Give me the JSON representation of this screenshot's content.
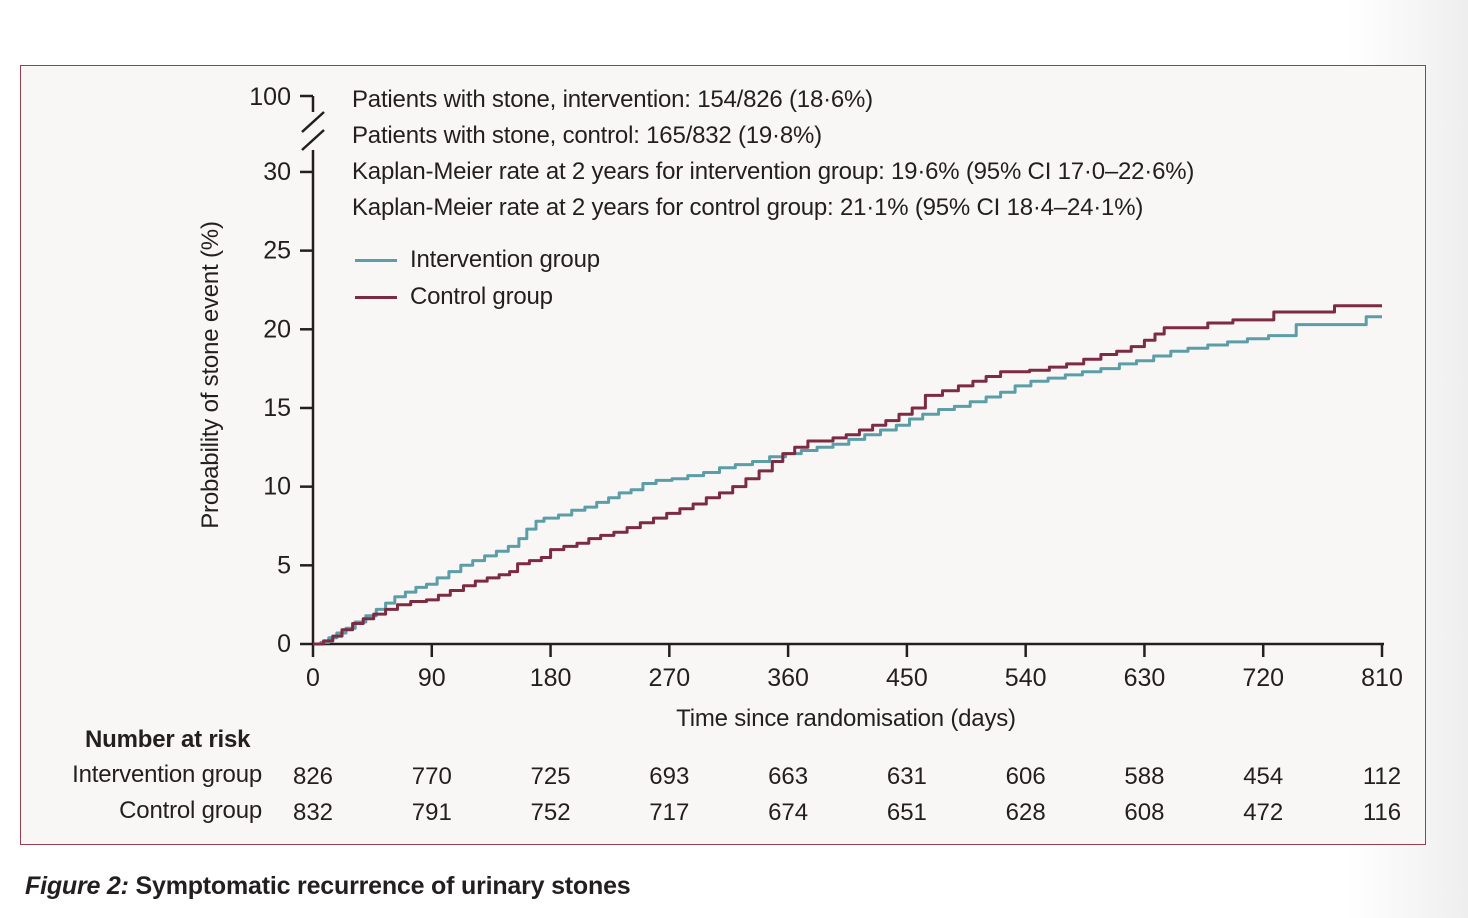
{
  "figure_box": {
    "border_color": "#96404f",
    "background": "#f8f7f5"
  },
  "annotations": {
    "lines": [
      "Patients with stone, intervention: 154/826 (18·6%)",
      "Patients with stone, control: 165/832 (19·8%)",
      "Kaplan-Meier rate at 2 years for intervention group: 19·6% (95% CI 17·0–22·6%)",
      "Kaplan-Meier rate at 2 years for control group: 21·1% (95% CI 18·4–24·1%)"
    ]
  },
  "caption": {
    "label": "Figure 2:",
    "text": "Symptomatic recurrence of urinary stones"
  },
  "chart_data": {
    "type": "line",
    "subtype": "kaplan-meier-step",
    "title": "",
    "xlabel": "Time since randomisation (days)",
    "ylabel": "Probability of stone event (%)",
    "xlim": [
      0,
      810
    ],
    "x_ticks": [
      0,
      90,
      180,
      270,
      360,
      450,
      540,
      630,
      720,
      810
    ],
    "y_ticks": [
      0,
      5,
      10,
      15,
      20,
      25,
      30
    ],
    "y_axis_break": true,
    "y_axis_top_label": "100",
    "grid": false,
    "legend_position": "upper-left-inside",
    "axis_color": "#231f20",
    "series": [
      {
        "name": "Intervention group",
        "color": "#5b9ea7",
        "points": [
          [
            0,
            0
          ],
          [
            6,
            0.1
          ],
          [
            12,
            0.4
          ],
          [
            18,
            0.7
          ],
          [
            25,
            1.0
          ],
          [
            32,
            1.4
          ],
          [
            40,
            1.8
          ],
          [
            48,
            2.2
          ],
          [
            55,
            2.6
          ],
          [
            62,
            3.0
          ],
          [
            70,
            3.3
          ],
          [
            78,
            3.6
          ],
          [
            86,
            3.8
          ],
          [
            94,
            4.2
          ],
          [
            103,
            4.6
          ],
          [
            112,
            5.0
          ],
          [
            121,
            5.3
          ],
          [
            130,
            5.6
          ],
          [
            139,
            5.9
          ],
          [
            148,
            6.2
          ],
          [
            156,
            6.7
          ],
          [
            162,
            7.3
          ],
          [
            169,
            7.8
          ],
          [
            175,
            8.0
          ],
          [
            186,
            8.2
          ],
          [
            196,
            8.5
          ],
          [
            206,
            8.7
          ],
          [
            215,
            9.0
          ],
          [
            224,
            9.3
          ],
          [
            232,
            9.6
          ],
          [
            241,
            9.8
          ],
          [
            250,
            10.2
          ],
          [
            260,
            10.4
          ],
          [
            272,
            10.5
          ],
          [
            284,
            10.7
          ],
          [
            296,
            10.9
          ],
          [
            308,
            11.2
          ],
          [
            320,
            11.4
          ],
          [
            333,
            11.6
          ],
          [
            346,
            11.9
          ],
          [
            358,
            12.1
          ],
          [
            370,
            12.3
          ],
          [
            382,
            12.5
          ],
          [
            394,
            12.7
          ],
          [
            406,
            13.0
          ],
          [
            418,
            13.3
          ],
          [
            430,
            13.6
          ],
          [
            442,
            13.9
          ],
          [
            452,
            14.3
          ],
          [
            462,
            14.6
          ],
          [
            474,
            14.9
          ],
          [
            486,
            15.1
          ],
          [
            498,
            15.4
          ],
          [
            510,
            15.7
          ],
          [
            521,
            16.0
          ],
          [
            532,
            16.4
          ],
          [
            544,
            16.7
          ],
          [
            557,
            16.9
          ],
          [
            570,
            17.1
          ],
          [
            583,
            17.3
          ],
          [
            597,
            17.5
          ],
          [
            611,
            17.8
          ],
          [
            624,
            18.0
          ],
          [
            637,
            18.3
          ],
          [
            650,
            18.6
          ],
          [
            663,
            18.8
          ],
          [
            678,
            19.0
          ],
          [
            693,
            19.2
          ],
          [
            708,
            19.4
          ],
          [
            724,
            19.6
          ],
          [
            745,
            20.3
          ],
          [
            798,
            20.8
          ],
          [
            810,
            20.8
          ]
        ]
      },
      {
        "name": "Control group",
        "color": "#7d2a43",
        "points": [
          [
            0,
            0
          ],
          [
            8,
            0.2
          ],
          [
            15,
            0.5
          ],
          [
            22,
            0.9
          ],
          [
            30,
            1.3
          ],
          [
            38,
            1.6
          ],
          [
            46,
            1.9
          ],
          [
            55,
            2.2
          ],
          [
            64,
            2.5
          ],
          [
            74,
            2.7
          ],
          [
            86,
            2.8
          ],
          [
            95,
            3.1
          ],
          [
            104,
            3.4
          ],
          [
            114,
            3.7
          ],
          [
            123,
            4.0
          ],
          [
            132,
            4.2
          ],
          [
            141,
            4.4
          ],
          [
            149,
            4.6
          ],
          [
            155,
            5.1
          ],
          [
            164,
            5.3
          ],
          [
            173,
            5.5
          ],
          [
            180,
            6.0
          ],
          [
            190,
            6.2
          ],
          [
            200,
            6.4
          ],
          [
            209,
            6.7
          ],
          [
            218,
            6.9
          ],
          [
            228,
            7.1
          ],
          [
            238,
            7.4
          ],
          [
            248,
            7.7
          ],
          [
            258,
            8.0
          ],
          [
            268,
            8.3
          ],
          [
            278,
            8.6
          ],
          [
            288,
            8.9
          ],
          [
            298,
            9.3
          ],
          [
            308,
            9.6
          ],
          [
            318,
            10.0
          ],
          [
            328,
            10.5
          ],
          [
            338,
            11.0
          ],
          [
            348,
            11.6
          ],
          [
            356,
            12.1
          ],
          [
            365,
            12.5
          ],
          [
            375,
            12.9
          ],
          [
            394,
            13.1
          ],
          [
            404,
            13.3
          ],
          [
            414,
            13.6
          ],
          [
            424,
            13.9
          ],
          [
            434,
            14.2
          ],
          [
            444,
            14.6
          ],
          [
            454,
            15.0
          ],
          [
            464,
            15.8
          ],
          [
            477,
            16.1
          ],
          [
            489,
            16.4
          ],
          [
            500,
            16.7
          ],
          [
            510,
            17.0
          ],
          [
            521,
            17.3
          ],
          [
            543,
            17.4
          ],
          [
            558,
            17.6
          ],
          [
            571,
            17.8
          ],
          [
            584,
            18.1
          ],
          [
            597,
            18.4
          ],
          [
            609,
            18.6
          ],
          [
            620,
            18.9
          ],
          [
            630,
            19.3
          ],
          [
            638,
            19.7
          ],
          [
            645,
            20.1
          ],
          [
            678,
            20.4
          ],
          [
            697,
            20.6
          ],
          [
            728,
            21.1
          ],
          [
            774,
            21.5
          ],
          [
            810,
            21.5
          ]
        ]
      }
    ],
    "number_at_risk": {
      "label": "Number at risk",
      "times": [
        0,
        90,
        180,
        270,
        360,
        450,
        540,
        630,
        720,
        810
      ],
      "rows": [
        {
          "name": "Intervention group",
          "values": [
            826,
            770,
            725,
            693,
            663,
            631,
            606,
            588,
            454,
            112
          ]
        },
        {
          "name": "Control group",
          "values": [
            832,
            791,
            752,
            717,
            674,
            651,
            628,
            608,
            472,
            116
          ]
        }
      ]
    }
  }
}
